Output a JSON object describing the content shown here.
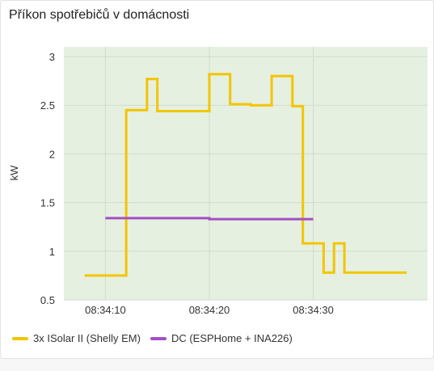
{
  "card": {
    "title": "Příkon spotřebičů v domácnosti"
  },
  "colors": {
    "plot_bg": "#e6f0e1",
    "grid": "#cfdccb",
    "series1": "#f2c500",
    "series2": "#a24fc4"
  },
  "chart_data": {
    "type": "line",
    "step": true,
    "title": "Příkon spotřebičů v domácnosti",
    "ylabel": "kW",
    "xlabel": "",
    "ylim": [
      0.5,
      3.1
    ],
    "xlim": [
      "08:34:06",
      "08:34:41"
    ],
    "y_ticks": [
      "3",
      "2.5",
      "2",
      "1.5",
      "1",
      "0.5"
    ],
    "x_ticks": [
      "08:34:10",
      "08:34:20",
      "08:34:30"
    ],
    "grid": true,
    "legend_position": "bottom",
    "series": [
      {
        "name": "3x ISolar II (Shelly EM)",
        "color": "#f2c500",
        "points": [
          [
            "08:34:08",
            0.75
          ],
          [
            "08:34:12",
            2.45
          ],
          [
            "08:34:14",
            2.77
          ],
          [
            "08:34:15",
            2.44
          ],
          [
            "08:34:20",
            2.82
          ],
          [
            "08:34:22",
            2.51
          ],
          [
            "08:34:24",
            2.5
          ],
          [
            "08:34:26",
            2.8
          ],
          [
            "08:34:28",
            2.49
          ],
          [
            "08:34:29",
            1.08
          ],
          [
            "08:34:31",
            0.78
          ],
          [
            "08:34:32",
            1.08
          ],
          [
            "08:34:33",
            0.78
          ],
          [
            "08:34:39",
            0.78
          ]
        ]
      },
      {
        "name": "DC (ESPHome + INA226)",
        "color": "#a24fc4",
        "points": [
          [
            "08:34:10",
            1.34
          ],
          [
            "08:34:20",
            1.33
          ],
          [
            "08:34:30",
            1.33
          ]
        ]
      }
    ]
  }
}
